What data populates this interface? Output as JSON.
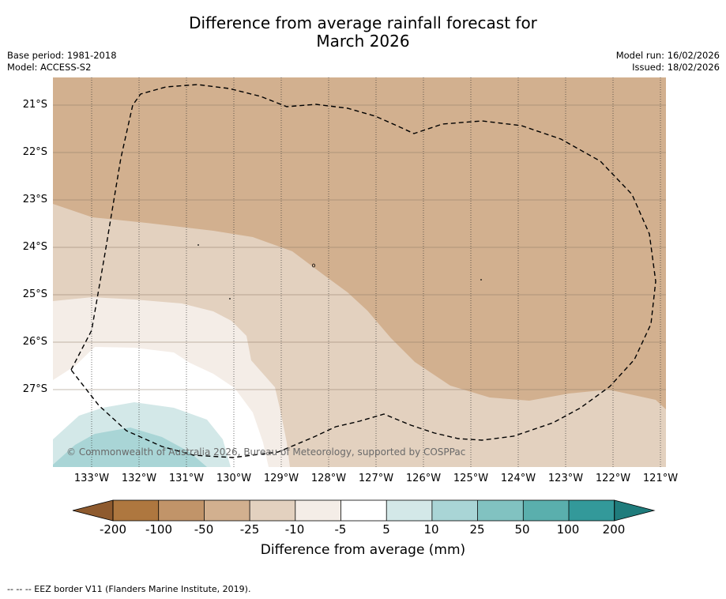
{
  "title": {
    "line1": "Difference from average rainfall forecast for",
    "line2": "March 2026"
  },
  "meta": {
    "base_period": "Base period: 1981-2018",
    "model": "Model: ACCESS-S2",
    "model_run": "Model run: 16/02/2026",
    "issued": "Issued: 18/02/2026"
  },
  "map": {
    "lat_labels": [
      "21°S",
      "22°S",
      "23°S",
      "24°S",
      "25°S",
      "26°S",
      "27°S"
    ],
    "lon_labels": [
      "133°W",
      "132°W",
      "131°W",
      "130°W",
      "129°W",
      "128°W",
      "127°W",
      "126°W",
      "125°W",
      "124°W",
      "123°W",
      "122°W",
      "121°W"
    ],
    "copyright": "© Commonwealth of Australia 2026, Bureau of Meteorology, supported by COSPPac",
    "colors": {
      "dry_25_50": "#d2b08f",
      "dry_10_25": "#e3d1bf",
      "dry_5_10": "#f4ede7",
      "neutral": "#ffffff",
      "wet_5_10": "#d3e8e8",
      "wet_10_25": "#a9d5d6"
    }
  },
  "colorbar": {
    "tick_labels": [
      "-200",
      "-100",
      "-50",
      "-25",
      "-10",
      "-5",
      "5",
      "10",
      "25",
      "50",
      "100",
      "200"
    ],
    "colors": [
      "#ae773f",
      "#c19469",
      "#d2b08f",
      "#e3d1bf",
      "#f4ede7",
      "#ffffff",
      "#d3e8e8",
      "#a9d5d6",
      "#81c2c1",
      "#5aafad",
      "#33999a"
    ],
    "under_color": "#8e5a2e",
    "over_color": "#1f7c7c",
    "label": "Difference from average (mm)"
  },
  "footer": {
    "legend": "--  --  -- EEZ border V11 (Flanders Marine Institute, 2019)."
  }
}
